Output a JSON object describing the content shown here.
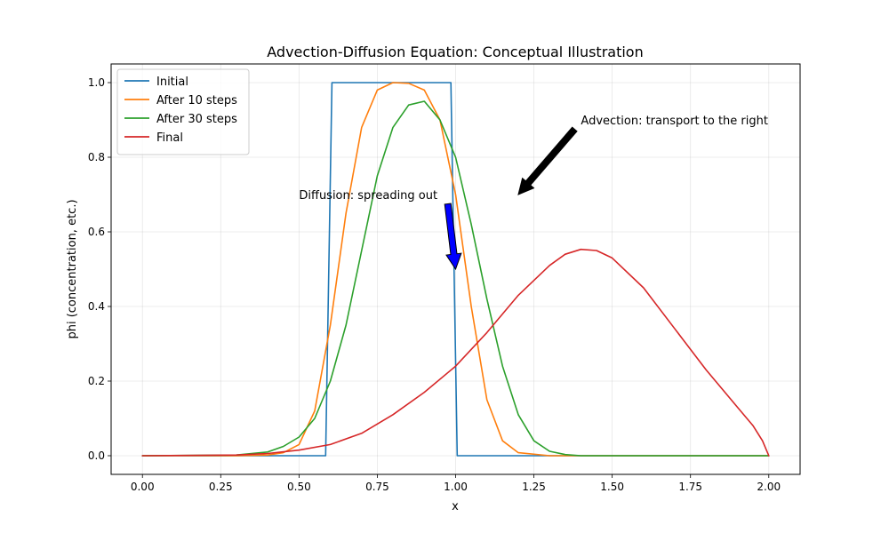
{
  "chart_data": {
    "type": "line",
    "title": "Advection-Diffusion Equation: Conceptual Illustration",
    "xlabel": "x",
    "ylabel": "phi (concentration, etc.)",
    "xlim": [
      -0.1,
      2.1
    ],
    "ylim": [
      -0.05,
      1.05
    ],
    "grid": true,
    "legend_position": "top-left",
    "x_ticks": [
      0.0,
      0.25,
      0.5,
      0.75,
      1.0,
      1.25,
      1.5,
      1.75,
      2.0
    ],
    "x_tick_labels": [
      "0.00",
      "0.25",
      "0.50",
      "0.75",
      "1.00",
      "1.25",
      "1.50",
      "1.75",
      "2.00"
    ],
    "y_ticks": [
      0.0,
      0.2,
      0.4,
      0.6,
      0.8,
      1.0
    ],
    "y_tick_labels": [
      "0.0",
      "0.2",
      "0.4",
      "0.6",
      "0.8",
      "1.0"
    ],
    "series": [
      {
        "name": "Initial",
        "color": "#1f77b4",
        "x": [
          0.0,
          0.585,
          0.605,
          0.985,
          1.005,
          2.0
        ],
        "y": [
          0.0,
          0.0,
          1.0,
          1.0,
          0.0,
          0.0
        ]
      },
      {
        "name": "After 10 steps",
        "color": "#ff7f0e",
        "x": [
          0.0,
          0.3,
          0.4,
          0.45,
          0.5,
          0.55,
          0.6,
          0.65,
          0.7,
          0.75,
          0.8,
          0.85,
          0.9,
          0.95,
          1.0,
          1.05,
          1.1,
          1.15,
          1.2,
          1.3,
          2.0
        ],
        "y": [
          0.0,
          0.0,
          0.002,
          0.008,
          0.03,
          0.12,
          0.35,
          0.65,
          0.88,
          0.98,
          1.0,
          0.998,
          0.98,
          0.9,
          0.7,
          0.4,
          0.15,
          0.04,
          0.008,
          0.0,
          0.0
        ]
      },
      {
        "name": "After 30 steps",
        "color": "#2ca02c",
        "x": [
          0.0,
          0.3,
          0.4,
          0.45,
          0.5,
          0.55,
          0.6,
          0.65,
          0.7,
          0.75,
          0.8,
          0.85,
          0.9,
          0.95,
          1.0,
          1.05,
          1.1,
          1.15,
          1.2,
          1.25,
          1.3,
          1.35,
          1.4,
          1.5,
          2.0
        ],
        "y": [
          0.0,
          0.002,
          0.01,
          0.025,
          0.05,
          0.1,
          0.2,
          0.35,
          0.55,
          0.75,
          0.88,
          0.94,
          0.95,
          0.9,
          0.8,
          0.62,
          0.42,
          0.24,
          0.11,
          0.04,
          0.012,
          0.003,
          0.0,
          0.0,
          0.0
        ]
      },
      {
        "name": "Final",
        "color": "#d62728",
        "x": [
          0.0,
          0.3,
          0.4,
          0.5,
          0.6,
          0.7,
          0.8,
          0.9,
          1.0,
          1.1,
          1.2,
          1.3,
          1.35,
          1.4,
          1.45,
          1.5,
          1.6,
          1.7,
          1.8,
          1.9,
          1.95,
          1.98,
          2.0
        ],
        "y": [
          0.0,
          0.002,
          0.006,
          0.015,
          0.03,
          0.06,
          0.11,
          0.17,
          0.24,
          0.33,
          0.43,
          0.51,
          0.54,
          0.553,
          0.55,
          0.53,
          0.45,
          0.34,
          0.23,
          0.13,
          0.08,
          0.04,
          0.0
        ]
      }
    ],
    "annotations": [
      {
        "text": "Diffusion: spreading out",
        "text_xy": [
          0.5,
          0.7
        ],
        "arrow_from": [
          0.975,
          0.675
        ],
        "arrow_to": [
          1.0,
          0.5
        ],
        "color": "#0000ff"
      },
      {
        "text": "Advection: transport to the right",
        "text_xy": [
          1.4,
          0.9
        ],
        "arrow_from": [
          1.38,
          0.875
        ],
        "arrow_to": [
          1.2,
          0.7
        ],
        "color": "#000000"
      }
    ]
  }
}
